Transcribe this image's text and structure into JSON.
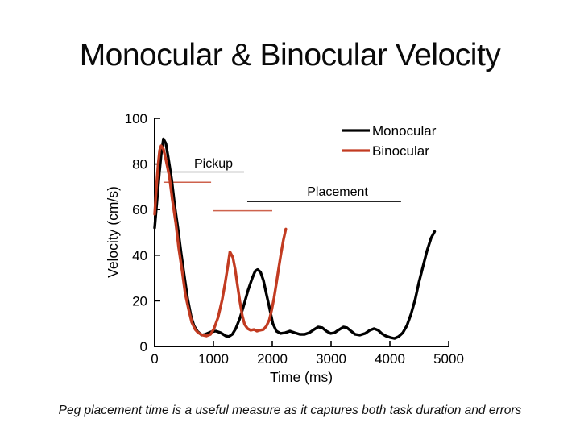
{
  "slide": {
    "title": "Monocular & Binocular Velocity",
    "caption": "Peg placement time is a useful measure as it captures both task duration and errors"
  },
  "chart_data": {
    "type": "line",
    "title": "",
    "xlabel": "Time (ms)",
    "ylabel": "Velocity (cm/s)",
    "xlim": [
      0,
      5000
    ],
    "ylim": [
      0,
      100
    ],
    "xticks": [
      0,
      1000,
      2000,
      3000,
      4000,
      5000
    ],
    "yticks": [
      0,
      20,
      40,
      60,
      80,
      100
    ],
    "grid": false,
    "legend_position": "top-right",
    "axis_color": "#000000",
    "series": [
      {
        "name": "Monocular",
        "color": "#000000",
        "points": [
          [
            0,
            52
          ],
          [
            40,
            64
          ],
          [
            80,
            76
          ],
          [
            110,
            84
          ],
          [
            150,
            91
          ],
          [
            190,
            89
          ],
          [
            230,
            83
          ],
          [
            290,
            73
          ],
          [
            340,
            62
          ],
          [
            400,
            51
          ],
          [
            450,
            41
          ],
          [
            510,
            30
          ],
          [
            560,
            21
          ],
          [
            620,
            13
          ],
          [
            670,
            9
          ],
          [
            730,
            6.5
          ],
          [
            800,
            5
          ],
          [
            860,
            5.3
          ],
          [
            960,
            6.4
          ],
          [
            1040,
            6.7
          ],
          [
            1120,
            6
          ],
          [
            1210,
            4.6
          ],
          [
            1260,
            4.3
          ],
          [
            1320,
            5.3
          ],
          [
            1380,
            7.8
          ],
          [
            1450,
            12.4
          ],
          [
            1520,
            18.4
          ],
          [
            1590,
            24.8
          ],
          [
            1660,
            30
          ],
          [
            1710,
            33
          ],
          [
            1750,
            33.7
          ],
          [
            1800,
            32.6
          ],
          [
            1850,
            29
          ],
          [
            1900,
            23
          ],
          [
            1960,
            16
          ],
          [
            2010,
            10
          ],
          [
            2070,
            6.7
          ],
          [
            2140,
            5.7
          ],
          [
            2220,
            6
          ],
          [
            2300,
            6.7
          ],
          [
            2380,
            6
          ],
          [
            2470,
            5.3
          ],
          [
            2550,
            5.3
          ],
          [
            2630,
            6
          ],
          [
            2710,
            7.4
          ],
          [
            2780,
            8.5
          ],
          [
            2850,
            8.2
          ],
          [
            2920,
            6.7
          ],
          [
            2990,
            5.7
          ],
          [
            3060,
            6
          ],
          [
            3120,
            7.1
          ],
          [
            3210,
            8.5
          ],
          [
            3270,
            8.2
          ],
          [
            3340,
            6.7
          ],
          [
            3410,
            5.3
          ],
          [
            3490,
            5
          ],
          [
            3580,
            5.7
          ],
          [
            3660,
            7.1
          ],
          [
            3730,
            7.8
          ],
          [
            3800,
            7.1
          ],
          [
            3860,
            5.7
          ],
          [
            3930,
            4.6
          ],
          [
            4010,
            3.9
          ],
          [
            4080,
            3.5
          ],
          [
            4150,
            4.3
          ],
          [
            4220,
            6
          ],
          [
            4290,
            9.2
          ],
          [
            4360,
            14.2
          ],
          [
            4430,
            20.6
          ],
          [
            4490,
            27.7
          ],
          [
            4560,
            34.8
          ],
          [
            4630,
            41.8
          ],
          [
            4700,
            47.5
          ],
          [
            4760,
            50.4
          ]
        ]
      },
      {
        "name": "Binocular",
        "color": "#c23b21",
        "points": [
          [
            0,
            58
          ],
          [
            30,
            70
          ],
          [
            60,
            80
          ],
          [
            85,
            86
          ],
          [
            110,
            88
          ],
          [
            150,
            86.5
          ],
          [
            190,
            82
          ],
          [
            250,
            74.5
          ],
          [
            300,
            64.5
          ],
          [
            360,
            54
          ],
          [
            410,
            43
          ],
          [
            470,
            32.6
          ],
          [
            520,
            23
          ],
          [
            580,
            16
          ],
          [
            630,
            10.6
          ],
          [
            690,
            7.4
          ],
          [
            740,
            6
          ],
          [
            810,
            5
          ],
          [
            880,
            4.6
          ],
          [
            950,
            5.3
          ],
          [
            1010,
            7.8
          ],
          [
            1080,
            12.8
          ],
          [
            1150,
            20.6
          ],
          [
            1200,
            28
          ],
          [
            1240,
            34.5
          ],
          [
            1280,
            41.5
          ],
          [
            1330,
            39
          ],
          [
            1370,
            33.7
          ],
          [
            1410,
            26.6
          ],
          [
            1450,
            19.5
          ],
          [
            1490,
            13.5
          ],
          [
            1530,
            9.6
          ],
          [
            1580,
            7.8
          ],
          [
            1630,
            7.1
          ],
          [
            1690,
            7.4
          ],
          [
            1740,
            6.7
          ],
          [
            1790,
            7.1
          ],
          [
            1850,
            7.4
          ],
          [
            1900,
            8.9
          ],
          [
            1950,
            11.7
          ],
          [
            1990,
            16
          ],
          [
            2030,
            21.3
          ],
          [
            2070,
            27.7
          ],
          [
            2110,
            34.4
          ],
          [
            2150,
            40.8
          ],
          [
            2190,
            46.8
          ],
          [
            2230,
            51.5
          ]
        ]
      }
    ],
    "annotations": [
      {
        "label": "Pickup",
        "label_t": 1000,
        "label_v": 78.5,
        "lines": [
          {
            "series": "Monocular",
            "t0": 110,
            "t1": 1520,
            "v": 76.5
          },
          {
            "series": "Binocular",
            "t0": 150,
            "t1": 960,
            "v": 72
          }
        ]
      },
      {
        "label": "Placement",
        "label_t": 3110,
        "label_v": 66,
        "lines": [
          {
            "series": "Monocular",
            "t0": 1575,
            "t1": 4190,
            "v": 63.5
          },
          {
            "series": "Binocular",
            "t0": 1000,
            "t1": 2000,
            "v": 59.5
          }
        ]
      }
    ]
  }
}
